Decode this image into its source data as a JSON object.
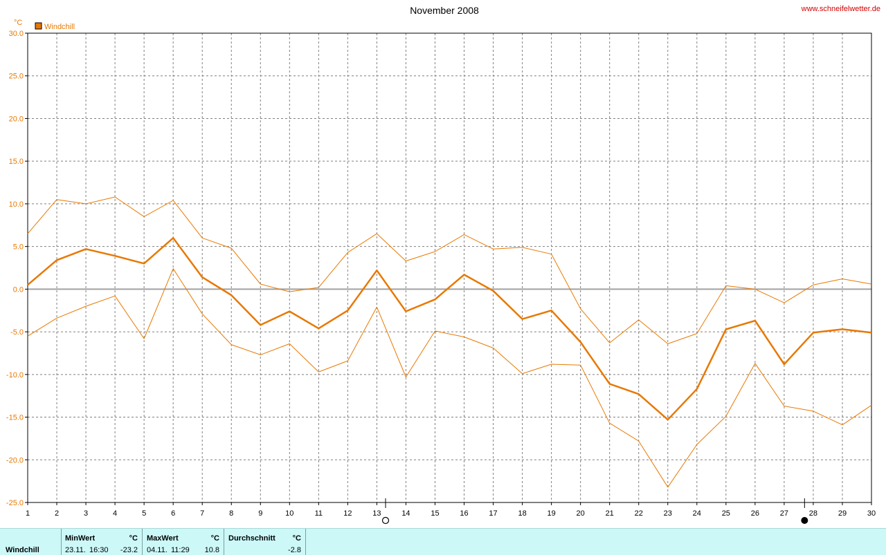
{
  "header": {
    "title": "November 2008",
    "site": "www.schneifelwetter.de",
    "unit": "°C",
    "legend_label": "Windchill"
  },
  "colors": {
    "series": "#e87800",
    "grid": "#7f7f7f",
    "zero_line": "#a0a0a0",
    "site_text": "#d40000",
    "stats_bg": "#ccf8f8"
  },
  "chart_data": {
    "type": "line",
    "title": "November 2008",
    "ylabel": "°C",
    "ylim": [
      -25,
      30
    ],
    "yticks": [
      -25,
      -20,
      -15,
      -10,
      -5,
      0,
      5,
      10,
      15,
      20,
      25,
      30
    ],
    "ytick_labels": [
      "-25.0",
      "-20.0",
      "-15.0",
      "-10.0",
      "-5.0",
      "0.0",
      "5.0",
      "10.0",
      "15.0",
      "20.0",
      "25.0",
      "30.0"
    ],
    "x": [
      1,
      2,
      3,
      4,
      5,
      6,
      7,
      8,
      9,
      10,
      11,
      12,
      13,
      14,
      15,
      16,
      17,
      18,
      19,
      20,
      21,
      22,
      23,
      24,
      25,
      26,
      27,
      28,
      29,
      30
    ],
    "xlim": [
      1,
      30
    ],
    "grid": true,
    "legend_position": "top-left",
    "moon_phases": [
      {
        "day": 13.3,
        "phase": "full"
      },
      {
        "day": 27.7,
        "phase": "new"
      }
    ],
    "series": [
      {
        "name": "Windchill",
        "role": "max",
        "values": [
          6.5,
          10.5,
          10.0,
          10.8,
          8.5,
          10.4,
          6.0,
          4.8,
          0.6,
          -0.3,
          0.2,
          4.3,
          6.5,
          3.3,
          4.4,
          6.4,
          4.7,
          4.9,
          4.1,
          -2.3,
          -6.3,
          -3.6,
          -6.4,
          -5.2,
          0.4,
          0.0,
          -1.6,
          0.5,
          1.2,
          0.6
        ]
      },
      {
        "name": "Windchill",
        "role": "mean",
        "values": [
          0.5,
          3.4,
          4.7,
          3.9,
          3.0,
          6.0,
          1.4,
          -0.7,
          -4.2,
          -2.6,
          -4.6,
          -2.5,
          2.2,
          -2.6,
          -1.2,
          1.7,
          -0.2,
          -3.5,
          -2.5,
          -6.2,
          -11.1,
          -12.3,
          -15.3,
          -11.7,
          -4.7,
          -3.7,
          -8.8,
          -5.1,
          -4.7,
          -5.1
        ]
      },
      {
        "name": "Windchill",
        "role": "min",
        "values": [
          -5.5,
          -3.4,
          -2.0,
          -0.8,
          -5.8,
          2.4,
          -2.9,
          -6.5,
          -7.7,
          -6.4,
          -9.7,
          -8.4,
          -2.1,
          -10.3,
          -4.9,
          -5.6,
          -6.9,
          -9.9,
          -8.8,
          -8.9,
          -15.7,
          -17.8,
          -23.2,
          -18.2,
          -14.9,
          -8.7,
          -13.7,
          -14.3,
          -15.9,
          -13.6
        ]
      }
    ]
  },
  "stats": {
    "row_label": "Windchill",
    "min": {
      "header": "MinWert",
      "unit": "°C",
      "date": "23.11.",
      "time": "16:30",
      "value": "-23.2"
    },
    "max": {
      "header": "MaxWert",
      "unit": "°C",
      "date": "04.11.",
      "time": "11:29",
      "value": "10.8"
    },
    "avg": {
      "header": "Durchschnitt",
      "unit": "°C",
      "value": "-2.8"
    }
  }
}
